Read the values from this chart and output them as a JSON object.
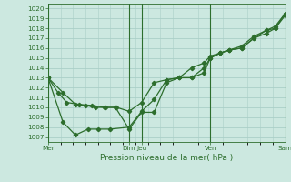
{
  "xlabel": "Pression niveau de la mer( hPa )",
  "background_color": "#cce8e0",
  "grid_color": "#b0d8d0",
  "line_color": "#2d6e2d",
  "ylim": [
    1006.5,
    1020.5
  ],
  "yticks": [
    1007,
    1008,
    1009,
    1010,
    1011,
    1012,
    1013,
    1014,
    1015,
    1016,
    1017,
    1018,
    1019,
    1020
  ],
  "xlim": [
    0,
    19
  ],
  "xtick_labels": [
    "Mer",
    "Dim",
    "Jeu",
    "Ven",
    "Sam"
  ],
  "xtick_positions": [
    0,
    6.5,
    7.5,
    13,
    19
  ],
  "vline_positions": [
    0,
    6.5,
    7.5,
    13,
    19
  ],
  "series1_x": [
    0,
    0.8,
    1.5,
    2.5,
    3.5,
    4.5,
    5.5,
    6.5,
    7.5,
    8.5,
    9.5,
    10.5,
    11.5,
    12.5,
    13,
    13.8,
    14.5,
    15.5,
    16.5,
    17.5,
    18.2,
    19
  ],
  "series1_y": [
    1013,
    1011.5,
    1010.5,
    1010.3,
    1010.2,
    1010.0,
    1010.0,
    1009.6,
    1010.5,
    1012.5,
    1012.8,
    1013.0,
    1014.0,
    1014.5,
    1015.2,
    1015.5,
    1015.8,
    1016.0,
    1017.0,
    1017.5,
    1018.0,
    1019.3
  ],
  "series2_x": [
    0,
    1.2,
    2.2,
    3.2,
    4.0,
    5.0,
    6.5,
    7.5,
    8.5,
    9.5,
    10.5,
    11.5,
    12.5,
    13,
    13.8,
    14.5,
    15.5,
    16.5,
    17.5,
    18.2,
    19
  ],
  "series2_y": [
    1013,
    1008.5,
    1007.2,
    1007.8,
    1007.8,
    1007.8,
    1008.0,
    1009.6,
    1010.8,
    1012.8,
    1013.0,
    1013.0,
    1014.0,
    1015.0,
    1015.5,
    1015.8,
    1016.0,
    1017.0,
    1017.8,
    1018.0,
    1019.5
  ],
  "series3_x": [
    0,
    1.2,
    2.2,
    3.0,
    3.8,
    4.6,
    5.4,
    6.5,
    7.5,
    8.5,
    9.5,
    10.5,
    11.5,
    12.5,
    13,
    13.8,
    14.5,
    15.5,
    16.5,
    17.5,
    18.2,
    19
  ],
  "series3_y": [
    1013,
    1011.5,
    1010.3,
    1010.2,
    1010.0,
    1010.0,
    1010.0,
    1007.8,
    1009.5,
    1009.5,
    1012.5,
    1013.0,
    1013.0,
    1013.5,
    1015.0,
    1015.5,
    1015.8,
    1016.2,
    1017.2,
    1017.8,
    1018.2,
    1019.5
  ]
}
